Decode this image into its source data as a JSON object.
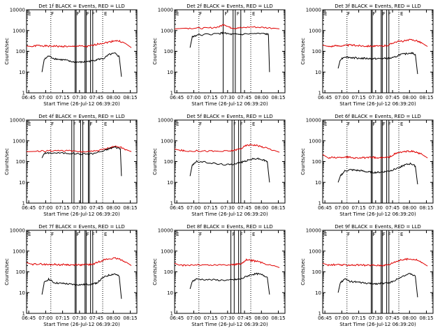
{
  "colors": {
    "events": "#000000",
    "lld": "#e00000"
  },
  "chart_data": [
    {
      "type": "line",
      "title": "Det 1f BLACK = Events, RED = LLD",
      "xlabel": "Start Time (26-Jul-12 06:39:20)",
      "ylabel": "Counts/sec",
      "x_ticks": [
        "06:45",
        "07:00",
        "07:15",
        "07:30",
        "07:45",
        "08:00",
        "08:15"
      ],
      "y_ticks": [
        "1",
        "10",
        "100",
        "1000",
        "10000"
      ],
      "y_scale": "log",
      "ylim": [
        1,
        10000
      ],
      "flags": [
        {
          "label": "E",
          "x": 0
        },
        {
          "label": "F",
          "x": 21
        },
        {
          "label": "E",
          "x": 69
        }
      ],
      "dotted_lines": [
        22,
        69
      ],
      "solid_lines": [
        44,
        45,
        53,
        54,
        58,
        60
      ],
      "series": [
        {
          "color_key": "lld",
          "x": [
            0,
            5,
            10,
            15,
            20,
            25,
            30,
            35,
            40,
            45,
            50,
            55,
            60,
            65,
            70,
            75,
            80,
            85,
            90,
            95
          ],
          "y": [
            180,
            170,
            190,
            185,
            175,
            180,
            170,
            175,
            165,
            180,
            175,
            170,
            190,
            230,
            250,
            280,
            330,
            300,
            230,
            150
          ]
        },
        {
          "color_key": "events",
          "x": [
            14,
            16,
            20,
            25,
            30,
            35,
            40,
            45,
            50,
            55,
            60,
            64,
            70,
            75,
            80,
            84,
            86
          ],
          "y": [
            10,
            40,
            60,
            45,
            40,
            38,
            32,
            30,
            30,
            32,
            35,
            40,
            45,
            70,
            80,
            55,
            6
          ]
        }
      ]
    },
    {
      "type": "line",
      "title": "Det 2f BLACK = Events, RED = LLD",
      "xlabel": "Start Time (26-Jul-12 06:39:20)",
      "ylabel": "Counts/sec",
      "x_ticks": [
        "06:45",
        "07:00",
        "07:15",
        "07:30",
        "07:45",
        "08:00",
        "08:15"
      ],
      "y_ticks": [
        "1",
        "10",
        "100",
        "1000",
        "10000"
      ],
      "y_scale": "log",
      "ylim": [
        1,
        10000
      ],
      "flags": [
        {
          "label": "E",
          "x": 0
        },
        {
          "label": "F",
          "x": 21
        },
        {
          "label": "E",
          "x": 69
        }
      ],
      "dotted_lines": [
        22,
        69
      ],
      "solid_lines": [
        44,
        53,
        55,
        60
      ],
      "series": [
        {
          "color_key": "lld",
          "x": [
            0,
            10,
            20,
            30,
            40,
            45,
            50,
            55,
            60,
            70,
            80,
            90,
            95
          ],
          "y": [
            1200,
            1300,
            1300,
            1300,
            1500,
            2000,
            1400,
            1300,
            1350,
            1500,
            1400,
            1300,
            1200
          ]
        },
        {
          "color_key": "events",
          "x": [
            14,
            16,
            20,
            30,
            40,
            45,
            50,
            55,
            60,
            70,
            80,
            85,
            86
          ],
          "y": [
            150,
            500,
            600,
            650,
            700,
            800,
            650,
            650,
            650,
            700,
            700,
            650,
            10
          ]
        }
      ]
    },
    {
      "type": "line",
      "title": "Det 3f BLACK = Events, RED = LLD",
      "xlabel": "Start Time (26-Jul-12 06:39:20)",
      "ylabel": "Counts/sec",
      "x_ticks": [
        "06:45",
        "07:00",
        "07:15",
        "07:30",
        "07:45",
        "08:00",
        "08:15"
      ],
      "y_ticks": [
        "1",
        "10",
        "100",
        "1000",
        "10000"
      ],
      "y_scale": "log",
      "ylim": [
        1,
        10000
      ],
      "flags": [
        {
          "label": "E",
          "x": 0
        },
        {
          "label": "F",
          "x": 21
        },
        {
          "label": "E",
          "x": 69
        }
      ],
      "dotted_lines": [
        22,
        69
      ],
      "solid_lines": [
        44,
        45,
        53,
        54,
        58,
        60
      ],
      "series": [
        {
          "color_key": "lld",
          "x": [
            0,
            5,
            10,
            15,
            20,
            25,
            30,
            35,
            40,
            45,
            50,
            55,
            60,
            65,
            70,
            75,
            80,
            85,
            90,
            95
          ],
          "y": [
            200,
            170,
            180,
            185,
            190,
            200,
            190,
            185,
            180,
            180,
            175,
            180,
            200,
            280,
            300,
            320,
            360,
            330,
            250,
            170
          ]
        },
        {
          "color_key": "events",
          "x": [
            14,
            16,
            20,
            25,
            30,
            35,
            40,
            45,
            50,
            55,
            60,
            64,
            70,
            75,
            80,
            84,
            86
          ],
          "y": [
            15,
            40,
            55,
            50,
            48,
            46,
            45,
            44,
            44,
            45,
            46,
            48,
            70,
            75,
            85,
            70,
            8
          ]
        }
      ]
    },
    {
      "type": "line",
      "title": "Det 4f BLACK = Events, RED = LLD",
      "xlabel": "Start Time (26-Jul-12 06:39:20)",
      "ylabel": "Counts/sec",
      "x_ticks": [
        "06:45",
        "07:00",
        "07:15",
        "07:30",
        "07:45",
        "08:00",
        "08:15"
      ],
      "y_ticks": [
        "1",
        "10",
        "100",
        "1000",
        "10000"
      ],
      "y_scale": "log",
      "ylim": [
        1,
        10000
      ],
      "flags": [
        {
          "label": "E",
          "x": 0
        },
        {
          "label": "F",
          "x": 21
        },
        {
          "label": "E",
          "x": 69
        }
      ],
      "dotted_lines": [
        22,
        69
      ],
      "solid_lines": [
        41,
        43,
        49,
        51,
        56,
        57
      ],
      "series": [
        {
          "color_key": "lld",
          "x": [
            0,
            10,
            20,
            30,
            40,
            50,
            60,
            70,
            75,
            80,
            85,
            90,
            95
          ],
          "y": [
            300,
            310,
            330,
            340,
            320,
            300,
            310,
            380,
            450,
            550,
            500,
            380,
            300
          ]
        },
        {
          "color_key": "events",
          "x": [
            14,
            16,
            20,
            30,
            40,
            50,
            60,
            70,
            75,
            80,
            85,
            86
          ],
          "y": [
            150,
            250,
            260,
            260,
            250,
            230,
            240,
            330,
            420,
            500,
            420,
            20
          ]
        }
      ]
    },
    {
      "type": "line",
      "title": "Det 5f BLACK = Events, RED = LLD",
      "xlabel": "Start Time (26-Jul-12 06:39:20)",
      "ylabel": "Counts/sec",
      "x_ticks": [
        "06:45",
        "07:00",
        "07:15",
        "07:30",
        "07:45",
        "08:00",
        "08:15"
      ],
      "y_ticks": [
        "1",
        "10",
        "100",
        "1000",
        "10000"
      ],
      "y_scale": "log",
      "ylim": [
        1,
        10000
      ],
      "flags": [
        {
          "label": "E",
          "x": 0
        },
        {
          "label": "F",
          "x": 21
        },
        {
          "label": "E",
          "x": 69
        }
      ],
      "dotted_lines": [
        22,
        69
      ],
      "solid_lines": [
        52,
        54,
        58,
        60
      ],
      "series": [
        {
          "color_key": "lld",
          "x": [
            0,
            5,
            10,
            20,
            30,
            40,
            50,
            55,
            60,
            65,
            70,
            75,
            80,
            90,
            95
          ],
          "y": [
            400,
            350,
            320,
            330,
            320,
            310,
            320,
            360,
            420,
            600,
            650,
            600,
            500,
            350,
            280
          ]
        },
        {
          "color_key": "events",
          "x": [
            14,
            16,
            20,
            30,
            40,
            50,
            55,
            60,
            65,
            70,
            75,
            80,
            84,
            86
          ],
          "y": [
            20,
            70,
            100,
            90,
            75,
            70,
            80,
            90,
            110,
            130,
            140,
            120,
            100,
            10
          ]
        }
      ]
    },
    {
      "type": "line",
      "title": "Det 6f BLACK = Events, RED = LLD",
      "xlabel": "Start Time (26-Jul-12 06:39:20)",
      "ylabel": "Counts/sec",
      "x_ticks": [
        "06:45",
        "07:00",
        "07:15",
        "07:30",
        "07:45",
        "08:00",
        "08:15"
      ],
      "y_ticks": [
        "1",
        "10",
        "100",
        "1000",
        "10000"
      ],
      "y_scale": "log",
      "ylim": [
        1,
        10000
      ],
      "flags": [
        {
          "label": "E",
          "x": 0
        },
        {
          "label": "F",
          "x": 21
        },
        {
          "label": "E",
          "x": 69
        }
      ],
      "dotted_lines": [
        22,
        69
      ],
      "solid_lines": [
        44,
        45,
        53,
        54,
        58,
        60
      ],
      "series": [
        {
          "color_key": "lld",
          "x": [
            0,
            5,
            10,
            15,
            20,
            25,
            30,
            35,
            40,
            45,
            50,
            55,
            60,
            65,
            70,
            75,
            80,
            85,
            90,
            95
          ],
          "y": [
            220,
            150,
            160,
            155,
            170,
            160,
            150,
            155,
            150,
            160,
            150,
            155,
            160,
            230,
            280,
            300,
            320,
            280,
            220,
            150
          ]
        },
        {
          "color_key": "events",
          "x": [
            14,
            16,
            20,
            25,
            30,
            35,
            40,
            45,
            50,
            55,
            60,
            64,
            70,
            75,
            80,
            84,
            86
          ],
          "y": [
            10,
            20,
            35,
            40,
            38,
            36,
            32,
            30,
            30,
            32,
            35,
            40,
            55,
            70,
            80,
            60,
            8
          ]
        }
      ]
    },
    {
      "type": "line",
      "title": "Det 7f BLACK = Events, RED = LLD",
      "xlabel": "Start Time (26-Jul-12 06:39:20)",
      "ylabel": "Counts/sec",
      "x_ticks": [
        "06:45",
        "07:00",
        "07:15",
        "07:30",
        "07:45",
        "08:00",
        "08:15"
      ],
      "y_ticks": [
        "1",
        "10",
        "100",
        "1000",
        "10000"
      ],
      "y_scale": "log",
      "ylim": [
        1,
        10000
      ],
      "flags": [
        {
          "label": "E",
          "x": 0
        },
        {
          "label": "F",
          "x": 21
        },
        {
          "label": "E",
          "x": 69
        }
      ],
      "dotted_lines": [
        22,
        69
      ],
      "solid_lines": [
        44,
        45,
        53,
        54,
        58,
        60
      ],
      "series": [
        {
          "color_key": "lld",
          "x": [
            0,
            5,
            10,
            15,
            20,
            25,
            30,
            35,
            40,
            45,
            50,
            55,
            60,
            65,
            70,
            75,
            80,
            85,
            90,
            95
          ],
          "y": [
            280,
            230,
            240,
            230,
            220,
            230,
            220,
            225,
            215,
            220,
            215,
            225,
            230,
            300,
            380,
            420,
            450,
            400,
            300,
            200
          ]
        },
        {
          "color_key": "events",
          "x": [
            14,
            16,
            20,
            25,
            30,
            35,
            40,
            45,
            50,
            55,
            60,
            64,
            70,
            75,
            80,
            84,
            86
          ],
          "y": [
            8,
            30,
            45,
            30,
            28,
            27,
            25,
            24,
            24,
            25,
            26,
            30,
            55,
            70,
            80,
            60,
            5
          ]
        }
      ]
    },
    {
      "type": "line",
      "title": "Det 8f BLACK = Events, RED = LLD",
      "xlabel": "Start Time (26-Jul-12 06:39:20)",
      "ylabel": "Counts/sec",
      "x_ticks": [
        "06:45",
        "07:00",
        "07:15",
        "07:30",
        "07:45",
        "08:00",
        "08:15"
      ],
      "y_ticks": [
        "1",
        "10",
        "100",
        "1000",
        "10000"
      ],
      "y_scale": "log",
      "ylim": [
        1,
        10000
      ],
      "flags": [
        {
          "label": "E",
          "x": 0
        },
        {
          "label": "F",
          "x": 21
        },
        {
          "label": "E",
          "x": 69
        }
      ],
      "dotted_lines": [
        22,
        69
      ],
      "solid_lines": [
        51,
        54,
        58,
        60
      ],
      "series": [
        {
          "color_key": "lld",
          "x": [
            0,
            5,
            10,
            20,
            30,
            40,
            50,
            55,
            60,
            65,
            70,
            75,
            80,
            90,
            95
          ],
          "y": [
            260,
            200,
            210,
            220,
            210,
            215,
            220,
            230,
            240,
            380,
            350,
            320,
            260,
            200,
            160
          ]
        },
        {
          "color_key": "events",
          "x": [
            14,
            16,
            20,
            30,
            40,
            50,
            55,
            60,
            65,
            70,
            75,
            80,
            84,
            86
          ],
          "y": [
            15,
            35,
            45,
            42,
            40,
            40,
            42,
            45,
            60,
            75,
            80,
            70,
            55,
            8
          ]
        }
      ]
    },
    {
      "type": "line",
      "title": "Det 9f BLACK = Events, RED = LLD",
      "xlabel": "Start Time (26-Jul-12 06:39:20)",
      "ylabel": "Counts/sec",
      "x_ticks": [
        "06:45",
        "07:00",
        "07:15",
        "07:30",
        "07:45",
        "08:00",
        "08:15"
      ],
      "y_ticks": [
        "1",
        "10",
        "100",
        "1000",
        "10000"
      ],
      "y_scale": "log",
      "ylim": [
        1,
        10000
      ],
      "flags": [
        {
          "label": "E",
          "x": 0
        },
        {
          "label": "F",
          "x": 21
        },
        {
          "label": "E",
          "x": 69
        }
      ],
      "dotted_lines": [
        22,
        69
      ],
      "solid_lines": [
        44,
        45,
        53,
        54,
        58,
        60
      ],
      "series": [
        {
          "color_key": "lld",
          "x": [
            0,
            5,
            10,
            15,
            20,
            25,
            30,
            35,
            40,
            45,
            50,
            55,
            60,
            65,
            70,
            75,
            80,
            85,
            90,
            95
          ],
          "y": [
            260,
            210,
            220,
            215,
            210,
            215,
            210,
            212,
            205,
            210,
            205,
            210,
            220,
            300,
            360,
            400,
            420,
            380,
            280,
            190
          ]
        },
        {
          "color_key": "events",
          "x": [
            14,
            16,
            20,
            25,
            30,
            35,
            40,
            45,
            50,
            55,
            60,
            64,
            70,
            75,
            80,
            84,
            86
          ],
          "y": [
            10,
            30,
            45,
            35,
            32,
            30,
            28,
            27,
            27,
            28,
            30,
            35,
            55,
            70,
            80,
            60,
            6
          ]
        }
      ]
    }
  ]
}
